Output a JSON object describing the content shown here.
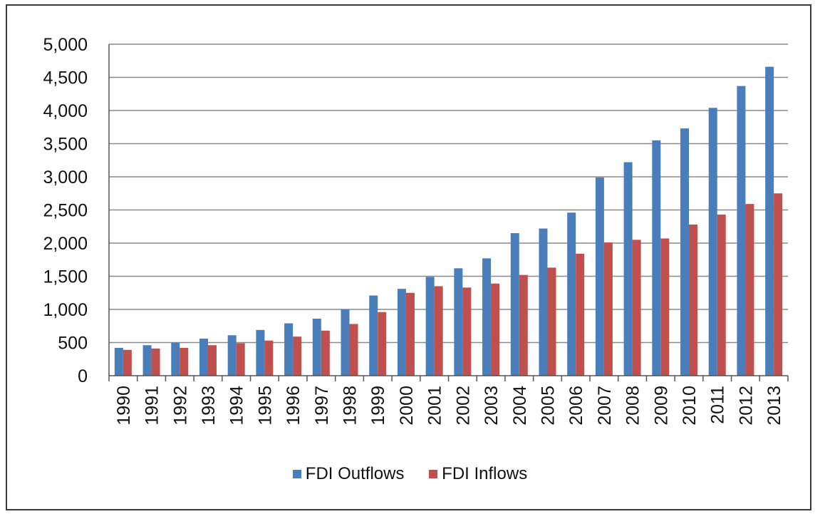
{
  "chart_data": {
    "type": "bar",
    "title": "",
    "xlabel": "",
    "ylabel": "",
    "ylim": [
      0,
      5000
    ],
    "yticks": [
      0,
      500,
      1000,
      1500,
      2000,
      2500,
      3000,
      3500,
      4000,
      4500,
      5000
    ],
    "ytick_labels": [
      "0",
      "500",
      "1,000",
      "1,500",
      "2,000",
      "2,500",
      "3,000",
      "3,500",
      "4,000",
      "4,500",
      "5,000"
    ],
    "grid": true,
    "legend_position": "bottom",
    "categories": [
      "1990",
      "1991",
      "1992",
      "1993",
      "1994",
      "1995",
      "1996",
      "1997",
      "1998",
      "1999",
      "2000",
      "2001",
      "2002",
      "2003",
      "2004",
      "2005",
      "2006",
      "2007",
      "2008",
      "2009",
      "2010",
      "2011",
      "2012",
      "2013"
    ],
    "series": [
      {
        "name": "FDI Outflows",
        "color": "#4a7ebb",
        "values": [
          420,
          460,
          500,
          560,
          610,
          690,
          790,
          860,
          1000,
          1210,
          1310,
          1490,
          1620,
          1770,
          2150,
          2220,
          2460,
          2990,
          3220,
          3550,
          3730,
          4040,
          4370,
          4660
        ]
      },
      {
        "name": "FDI Inflows",
        "color": "#c0504d",
        "values": [
          390,
          410,
          420,
          460,
          490,
          530,
          590,
          680,
          780,
          960,
          1250,
          1350,
          1330,
          1390,
          1520,
          1630,
          1840,
          2010,
          2050,
          2070,
          2280,
          2430,
          2590,
          2750
        ]
      }
    ]
  }
}
